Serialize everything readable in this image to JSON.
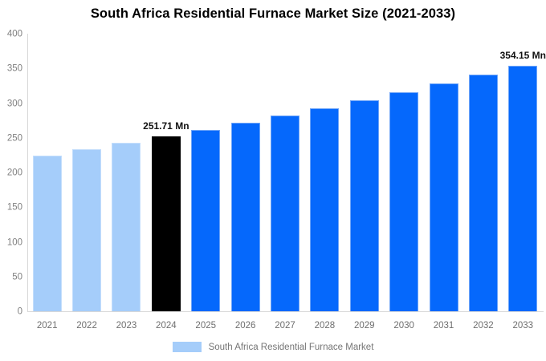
{
  "title": "South Africa Residential Furnace Market Size (2021-2033)",
  "legend": {
    "label": "South Africa Residential Furnace Market",
    "swatch_color": "#A5CDFA"
  },
  "colors": {
    "roles": {
      "historical": {
        "fill": "#A5CDFA",
        "border": "#C4DEFC"
      },
      "highlight": {
        "fill": "#000000",
        "border": "#000000"
      },
      "forecast": {
        "fill": "#0568FC",
        "border": "#6FA5F8"
      }
    },
    "axis_line": "#d8d8d8",
    "y_tick_text": "#808080",
    "x_tick_text": "#6e6e6e",
    "legend_text": "#757575",
    "value_label_text": "#111111"
  },
  "chart_data": {
    "type": "bar",
    "title": "South Africa Residential Furnace Market Size (2021-2033)",
    "categories": [
      "2021",
      "2022",
      "2023",
      "2024",
      "2025",
      "2026",
      "2027",
      "2028",
      "2029",
      "2030",
      "2031",
      "2032",
      "2033"
    ],
    "values": [
      224.6,
      233.3,
      242.3,
      251.71,
      261.4,
      271.6,
      282.1,
      293.0,
      304.3,
      316.1,
      328.3,
      341.0,
      354.15
    ],
    "bar_roles": [
      "historical",
      "historical",
      "historical",
      "highlight",
      "forecast",
      "forecast",
      "forecast",
      "forecast",
      "forecast",
      "forecast",
      "forecast",
      "forecast",
      "forecast"
    ],
    "data_labels": [
      {
        "category": "2024",
        "text": "251.71 Mn"
      },
      {
        "category": "2033",
        "text": "354.15 Mn"
      }
    ],
    "xlabel": "",
    "ylabel": "",
    "ylim": [
      0,
      400
    ],
    "yticks": [
      0,
      50,
      100,
      150,
      200,
      250,
      300,
      350,
      400
    ],
    "grid": false,
    "legend_position": "bottom",
    "legend_entries": [
      "South Africa Residential Furnace Market"
    ]
  }
}
